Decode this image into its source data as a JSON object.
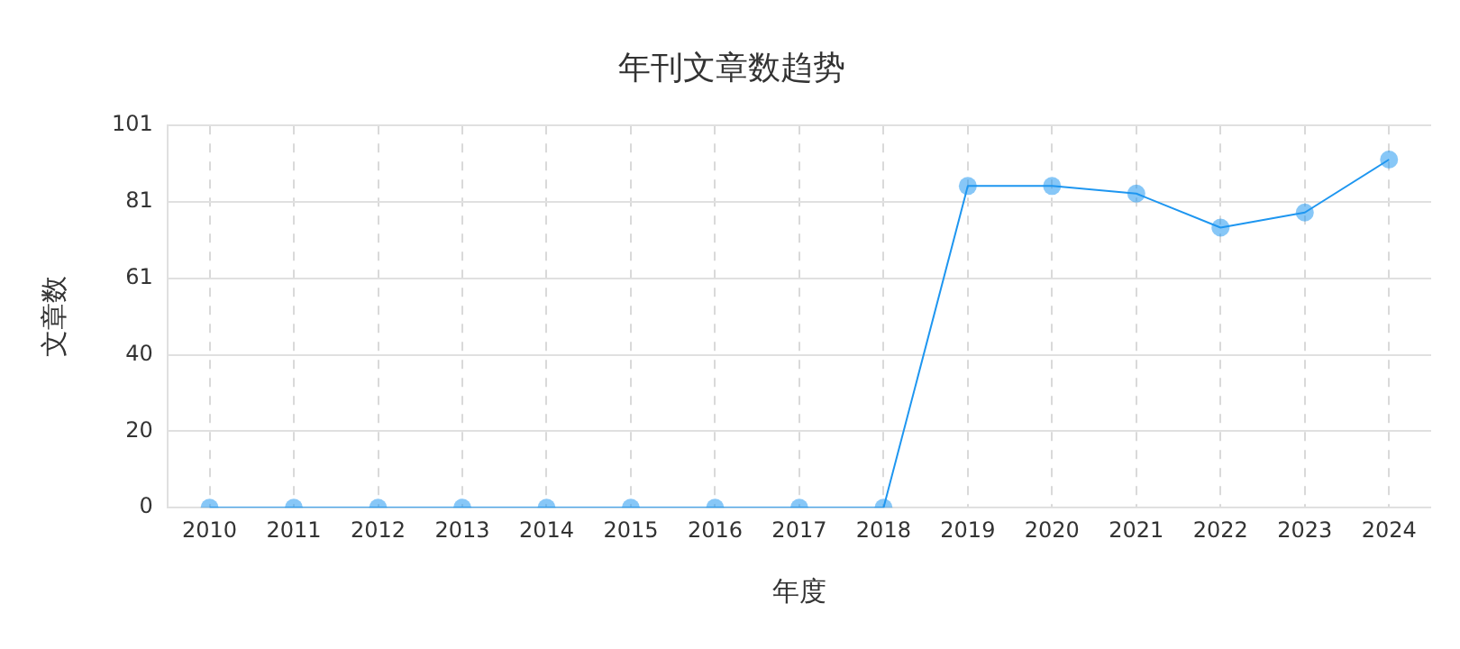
{
  "chart_data": {
    "type": "line",
    "title": "年刊文章数趋势",
    "xlabel": "年度",
    "ylabel": "文章数",
    "categories": [
      "2010",
      "2011",
      "2012",
      "2013",
      "2014",
      "2015",
      "2016",
      "2017",
      "2018",
      "2019",
      "2020",
      "2021",
      "2022",
      "2023",
      "2024"
    ],
    "series": [
      {
        "color": "#1e96f0",
        "values": [
          0,
          0,
          0,
          0,
          0,
          0,
          0,
          0,
          0,
          85,
          85,
          83,
          74,
          78,
          92
        ]
      }
    ],
    "ylim": [
      0,
      101
    ],
    "yticks": [
      0,
      {
        "value": 20.2,
        "label": "20"
      },
      {
        "value": 40.4,
        "label": "40"
      },
      {
        "value": 60.6,
        "label": "61"
      },
      {
        "value": 80.8,
        "label": "81"
      },
      101
    ],
    "grid": true,
    "marker": "circle",
    "line_style": "solid",
    "legend": false
  }
}
